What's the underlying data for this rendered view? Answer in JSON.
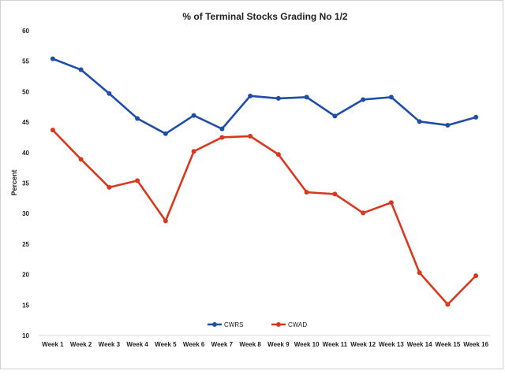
{
  "chart_data": {
    "type": "line",
    "title": "% of Terminal Stocks Grading No 1/2",
    "xlabel": "",
    "ylabel": "Percent",
    "ylim": [
      10,
      60
    ],
    "yticks": [
      10,
      15,
      20,
      25,
      30,
      35,
      40,
      45,
      50,
      55,
      60
    ],
    "grid": "off",
    "legend_placement": "bottom-center",
    "categories": [
      "Week 1",
      "Week 2",
      "Week 3",
      "Week 4",
      "Week 5",
      "Week 6",
      "Week 7",
      "Week 8",
      "Week 9",
      "Week 10",
      "Week 11",
      "Week 12",
      "Week 13",
      "Week 14",
      "Week 15",
      "Week 16"
    ],
    "series": [
      {
        "name": "CWRS",
        "color": "#1f4ea8",
        "values": [
          55.4,
          53.6,
          49.7,
          45.6,
          43.1,
          46.1,
          43.9,
          49.3,
          48.9,
          49.1,
          46.0,
          48.7,
          49.1,
          45.1,
          44.5,
          45.8
        ]
      },
      {
        "name": "CWAD",
        "color": "#d9381e",
        "values": [
          43.7,
          38.9,
          34.3,
          35.4,
          28.8,
          40.2,
          42.5,
          42.7,
          39.7,
          33.5,
          33.2,
          30.1,
          31.8,
          20.3,
          15.1,
          19.8
        ]
      }
    ]
  }
}
